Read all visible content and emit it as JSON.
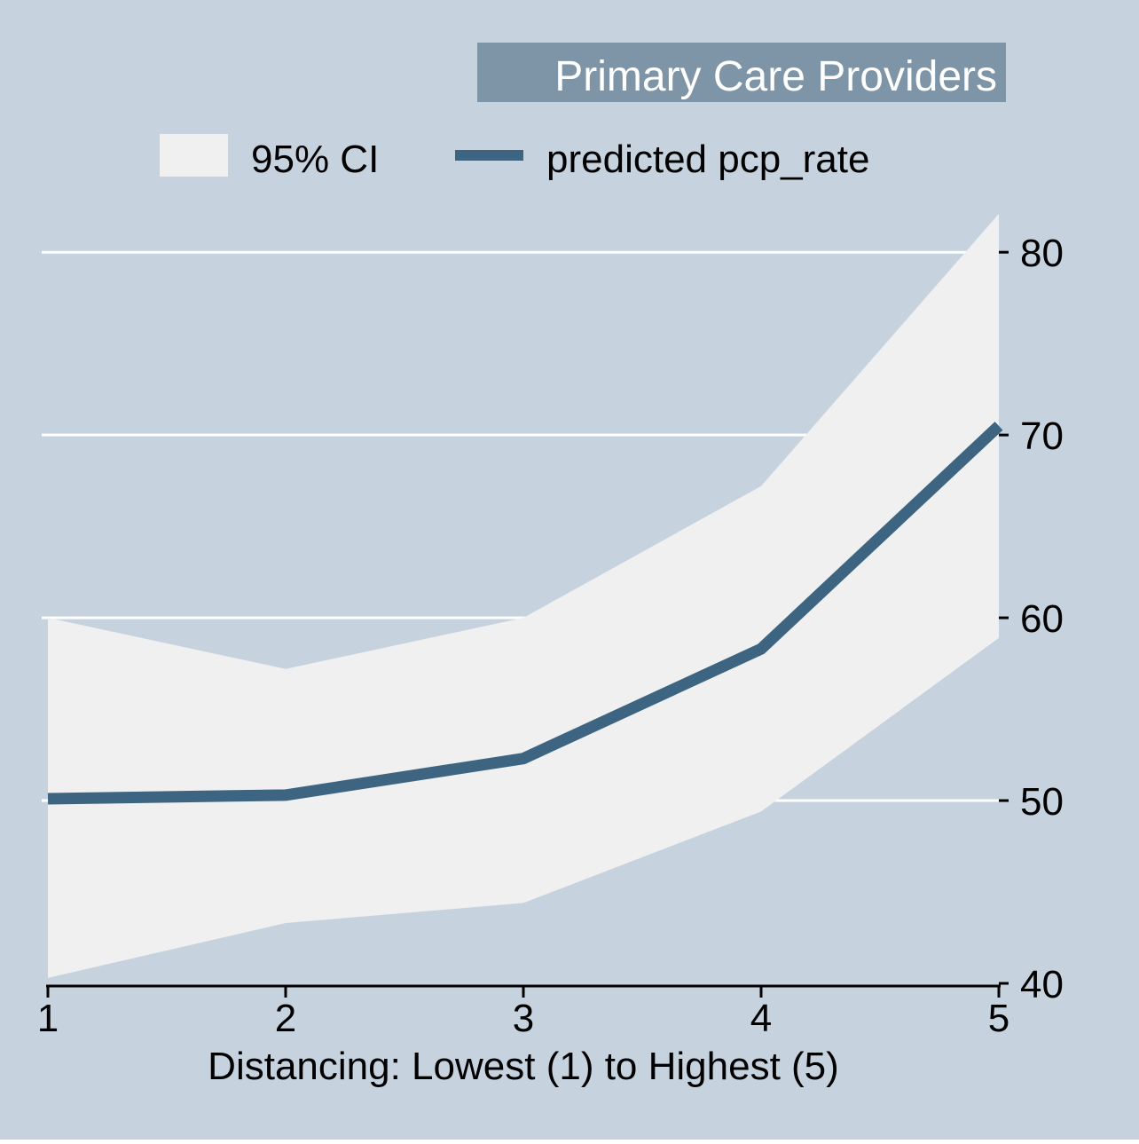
{
  "colors": {
    "plot_background": "#c6d3df",
    "ci_fill": "#f0f0f0",
    "line": "#3d6581",
    "title_box": "#7e95a7",
    "gridline": "#ffffff",
    "text": "#000000"
  },
  "chart_data": {
    "type": "line",
    "title": "Primary Care Providers",
    "xlabel": "Distancing: Lowest (1) to Highest (5)",
    "ylabel": "",
    "x": [
      1,
      2,
      3,
      4,
      5
    ],
    "series": [
      {
        "name": "predicted pcp_rate",
        "values": [
          50.1,
          50.3,
          52.3,
          58.3,
          70.5
        ]
      }
    ],
    "ci": {
      "name": "95% CI",
      "lower": [
        40.3,
        43.3,
        44.4,
        49.4,
        58.9
      ],
      "upper": [
        60.0,
        57.2,
        60.0,
        67.2,
        82.1
      ]
    },
    "xlim": [
      1,
      5
    ],
    "ylim": [
      40,
      82
    ],
    "x_ticks": [
      "1",
      "2",
      "3",
      "4",
      "5"
    ],
    "y_ticks": [
      "40",
      "50",
      "60",
      "70",
      "80"
    ],
    "y_axis_side": "right",
    "grid": true,
    "legend_position": "top"
  }
}
